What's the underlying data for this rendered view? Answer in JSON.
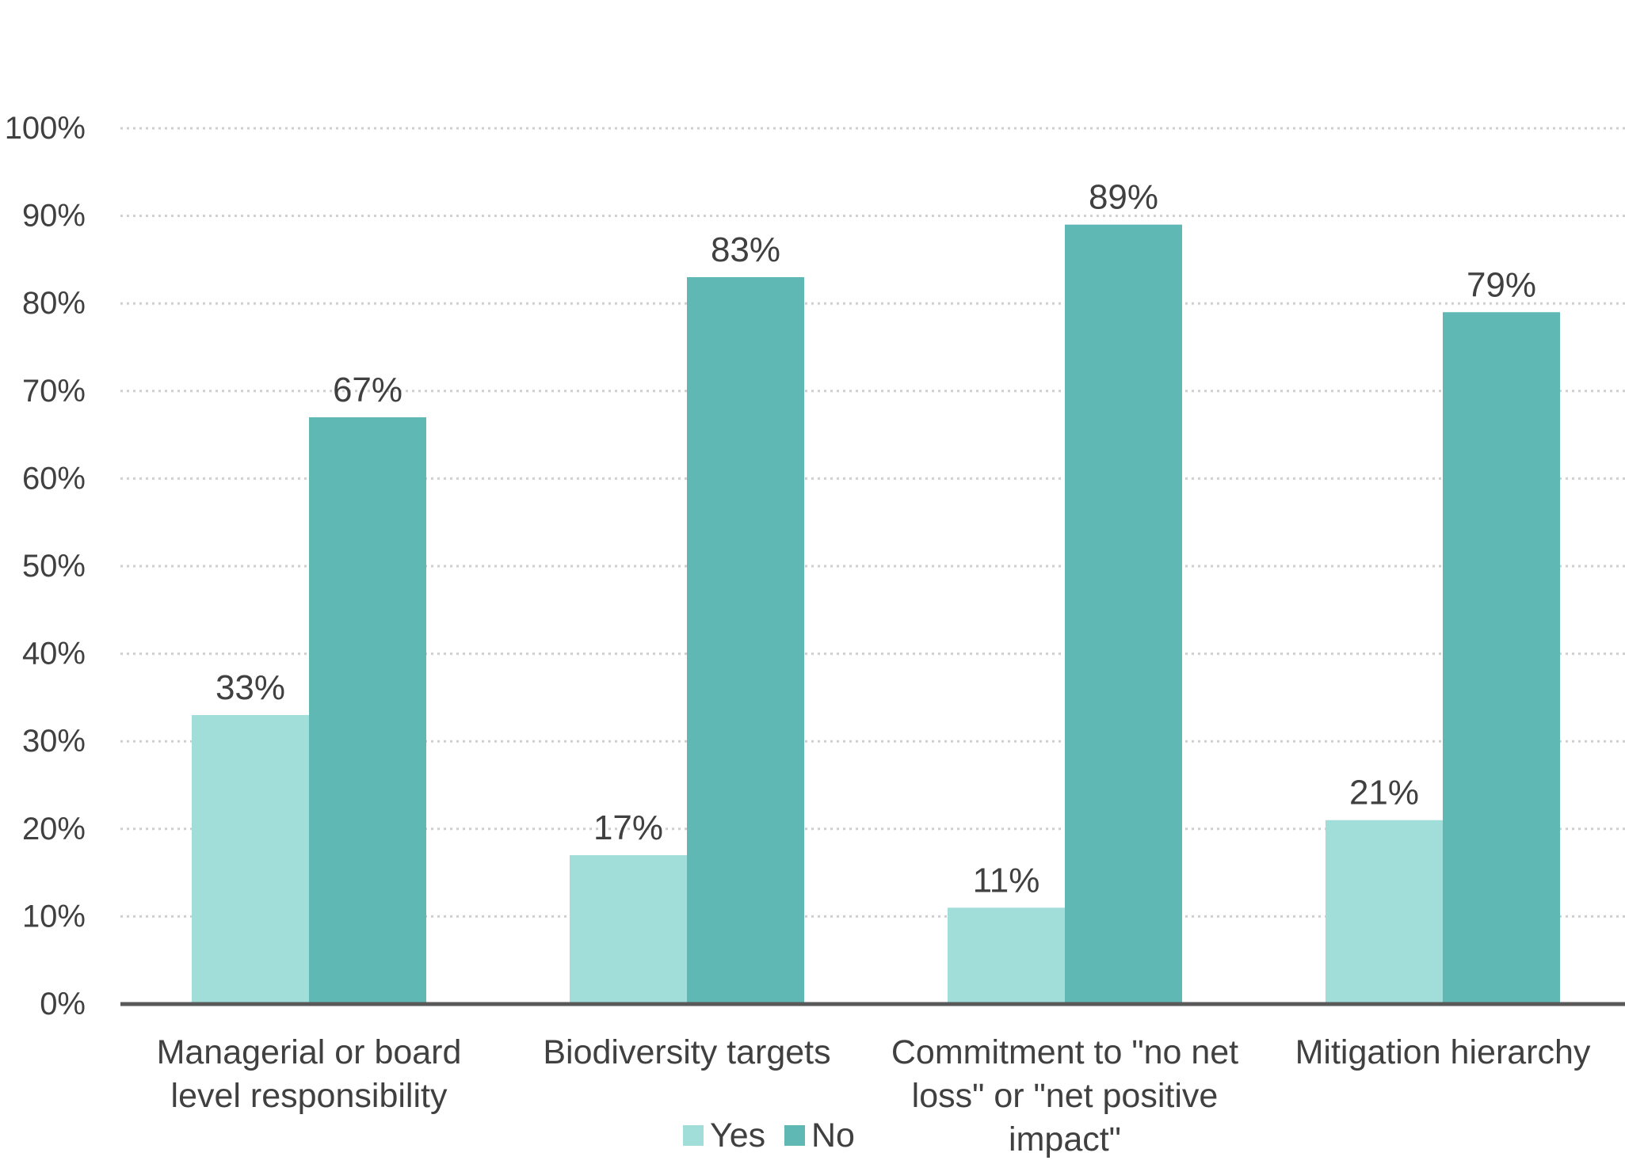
{
  "chart_data": {
    "type": "bar",
    "title": "",
    "xlabel": "",
    "ylabel": "",
    "categories": [
      [
        "Managerial or board",
        "level responsibility"
      ],
      [
        "Biodiversity targets"
      ],
      [
        "Commitment to \"no net",
        "loss\" or \"net positive",
        "impact\""
      ],
      [
        "Mitigation hierarchy"
      ]
    ],
    "series": [
      {
        "name": "Yes",
        "values": [
          33,
          17,
          11,
          21
        ],
        "labels": [
          "33%",
          "17%",
          "11%",
          "21%"
        ]
      },
      {
        "name": "No",
        "values": [
          67,
          83,
          89,
          79
        ],
        "labels": [
          "67%",
          "83%",
          "89%",
          "79%"
        ]
      }
    ],
    "ylim": [
      0,
      100
    ],
    "yticks": [
      0,
      10,
      20,
      30,
      40,
      50,
      60,
      70,
      80,
      90,
      100
    ],
    "ytick_labels": [
      "0%",
      "10%",
      "20%",
      "30%",
      "40%",
      "50%",
      "60%",
      "70%",
      "80%",
      "90%",
      "100%"
    ],
    "grid": true,
    "legend": {
      "position": "bottom-center",
      "entries": [
        "Yes",
        "No"
      ]
    },
    "colors": {
      "Yes": "#a1ddd9",
      "No": "#5fb8b4",
      "axis": "#595959",
      "grid": "#cfcfcf",
      "text": "#404040"
    }
  }
}
